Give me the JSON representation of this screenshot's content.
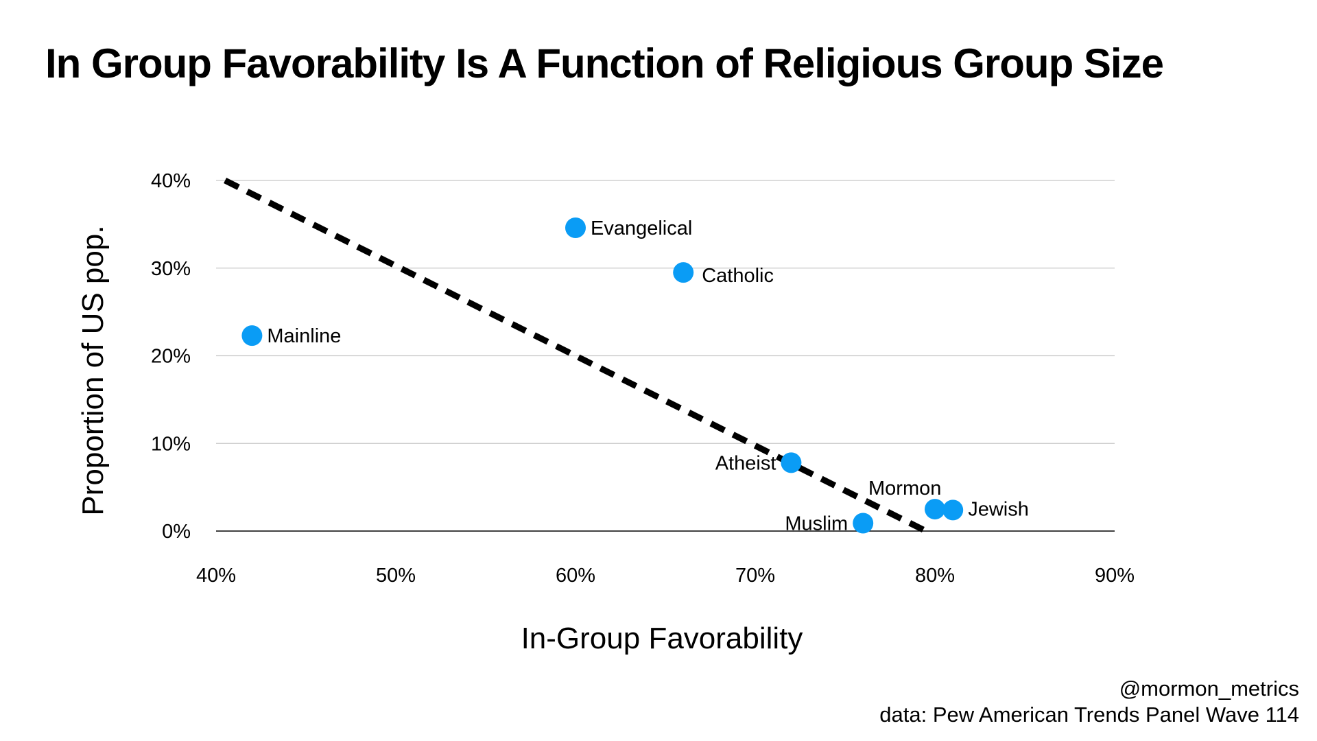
{
  "chart_data": {
    "type": "scatter",
    "title": "In Group Favorability Is A Function of Religious Group Size",
    "xlabel": "In-Group Favorability",
    "ylabel": "Proportion of US pop.",
    "xlim": [
      40,
      90
    ],
    "ylim": [
      0,
      40
    ],
    "xticks": [
      "40%",
      "50%",
      "60%",
      "70%",
      "80%",
      "90%"
    ],
    "xtick_values": [
      40,
      50,
      60,
      70,
      80,
      90
    ],
    "yticks": [
      "0%",
      "10%",
      "20%",
      "30%",
      "40%"
    ],
    "ytick_values": [
      0,
      10,
      20,
      30,
      40
    ],
    "grid": "horizontal",
    "point_color": "#0a9cf5",
    "points": [
      {
        "label": "Mainline",
        "x": 42,
        "y": 22.3,
        "label_pos": "right"
      },
      {
        "label": "Evangelical",
        "x": 60,
        "y": 34.6,
        "label_pos": "right"
      },
      {
        "label": "Catholic",
        "x": 66,
        "y": 29.5,
        "label_pos": "right-below"
      },
      {
        "label": "Atheist",
        "x": 72,
        "y": 7.8,
        "label_pos": "left"
      },
      {
        "label": "Muslim",
        "x": 76,
        "y": 0.9,
        "label_pos": "left"
      },
      {
        "label": "Mormon",
        "x": 80,
        "y": 2.5,
        "label_pos": "above-left"
      },
      {
        "label": "Jewish",
        "x": 81,
        "y": 2.4,
        "label_pos": "right"
      }
    ],
    "trendline": {
      "style": "dashed",
      "color": "#000000",
      "x": [
        40.5,
        79.5
      ],
      "y": [
        40,
        0
      ]
    }
  },
  "credits": {
    "handle": "@mormon_metrics",
    "source": "data: Pew American Trends Panel Wave 114"
  }
}
